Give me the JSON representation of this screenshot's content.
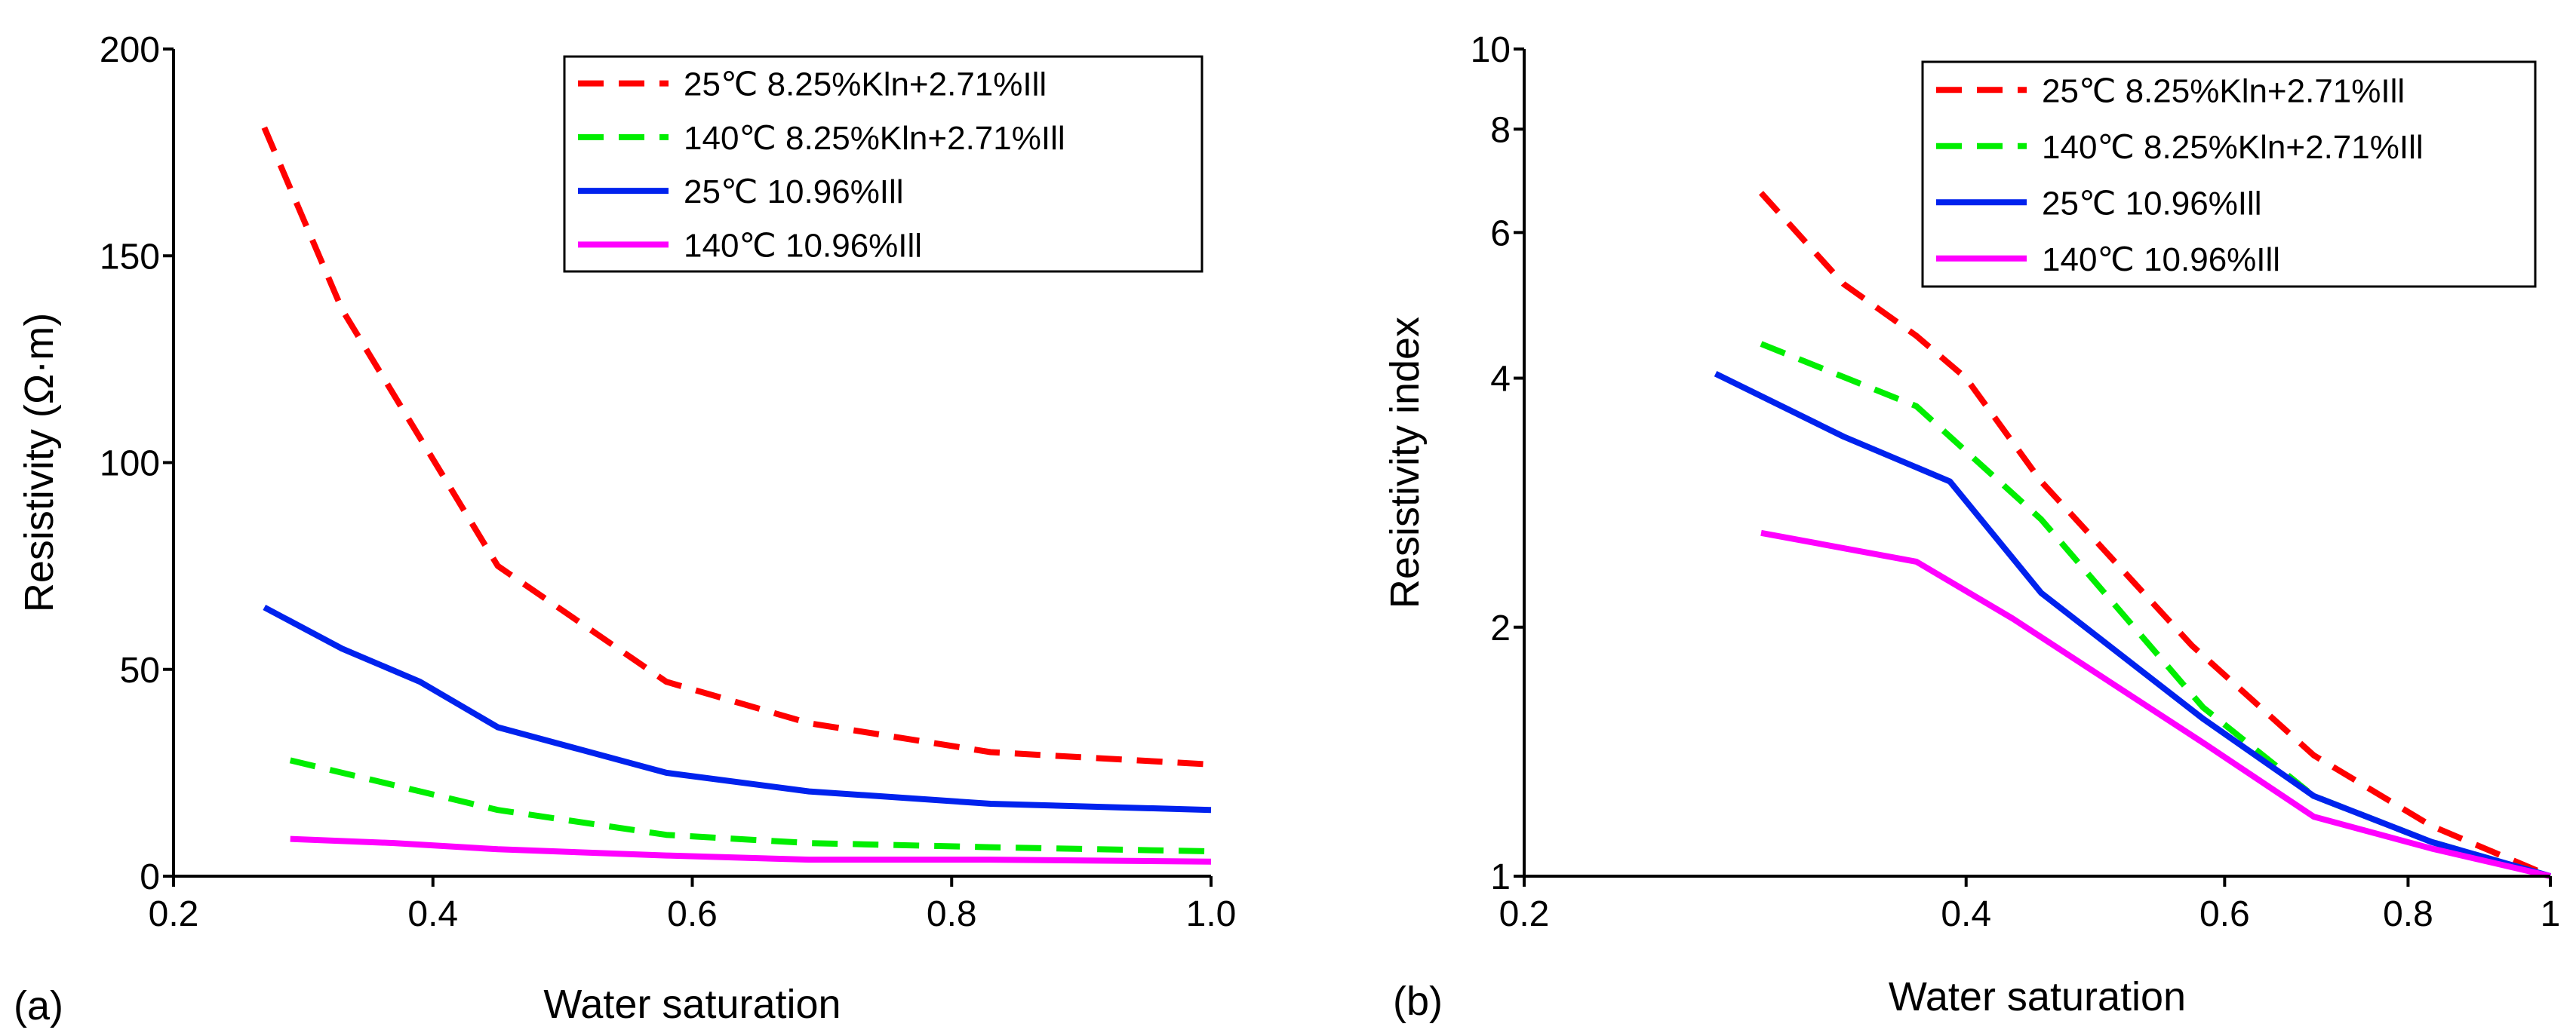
{
  "chart_data": [
    {
      "panel_label": "(a)",
      "type": "line",
      "xlabel": "Water saturation",
      "ylabel": "Resistivity (Ω·m)",
      "xlim": [
        0.2,
        1.0
      ],
      "ylim": [
        0,
        200
      ],
      "xscale": "linear",
      "yscale": "linear",
      "xticks": [
        "0.2",
        "0.4",
        "0.6",
        "0.8",
        "1.0"
      ],
      "xtick_values": [
        0.2,
        0.4,
        0.6,
        0.8,
        1.0
      ],
      "yticks": [
        "0",
        "50",
        "100",
        "150",
        "200"
      ],
      "ytick_values": [
        0,
        50,
        100,
        150,
        200
      ],
      "grid": false,
      "legend_position": "top-right",
      "series": [
        {
          "name": "25℃ 8.25%Kln+2.71%Ill",
          "color": "#ff0000",
          "dash": "dashed",
          "x": [
            0.27,
            0.33,
            0.39,
            0.45,
            0.58,
            0.69,
            0.83,
            1.0
          ],
          "y": [
            181,
            137,
            106,
            75,
            47,
            37,
            30,
            27
          ]
        },
        {
          "name": "140℃ 8.25%Kln+2.71%Ill",
          "color": "#00ee00",
          "dash": "dashed",
          "x": [
            0.29,
            0.37,
            0.45,
            0.58,
            0.69,
            0.83,
            1.0
          ],
          "y": [
            28,
            22,
            16,
            10,
            8,
            7,
            6
          ]
        },
        {
          "name": "25℃ 10.96%Ill",
          "color": "#0022ee",
          "dash": "solid",
          "x": [
            0.27,
            0.33,
            0.39,
            0.45,
            0.58,
            0.69,
            0.83,
            1.0
          ],
          "y": [
            65,
            55,
            47,
            36,
            25,
            20.5,
            17.5,
            16
          ]
        },
        {
          "name": "140℃ 10.96%Ill",
          "color": "#ff00ff",
          "dash": "solid",
          "x": [
            0.29,
            0.37,
            0.45,
            0.58,
            0.69,
            0.83,
            1.0
          ],
          "y": [
            9,
            8,
            6.5,
            5,
            4,
            4,
            3.5
          ]
        }
      ]
    },
    {
      "panel_label": "(b)",
      "type": "line",
      "xlabel": "Water saturation",
      "ylabel": "Resistivity index",
      "xlim": [
        0.2,
        1.0
      ],
      "ylim": [
        1,
        10
      ],
      "xscale": "log",
      "yscale": "log",
      "xticks": [
        "0.2",
        "0.4",
        "0.6",
        "0.8",
        "1"
      ],
      "xtick_values": [
        0.2,
        0.4,
        0.6,
        0.8,
        1.0
      ],
      "yticks": [
        "1",
        "2",
        "4",
        "6",
        "8",
        "10"
      ],
      "ytick_values": [
        1,
        2,
        4,
        6,
        8,
        10
      ],
      "grid": false,
      "legend_position": "top-right",
      "series": [
        {
          "name": "25℃ 8.25%Kln+2.71%Ill",
          "color": "#ff0000",
          "dash": "dashed",
          "x": [
            0.29,
            0.33,
            0.37,
            0.4,
            0.45,
            0.57,
            0.69,
            0.83,
            1.0
          ],
          "y": [
            6.7,
            5.2,
            4.5,
            4.0,
            3.0,
            1.9,
            1.4,
            1.15,
            1.0
          ]
        },
        {
          "name": "140℃ 8.25%Kln+2.71%Ill",
          "color": "#00ee00",
          "dash": "dashed",
          "x": [
            0.29,
            0.37,
            0.45,
            0.58,
            0.69,
            0.83,
            1.0
          ],
          "y": [
            4.4,
            3.7,
            2.7,
            1.6,
            1.25,
            1.1,
            1.0
          ]
        },
        {
          "name": "25℃ 10.96%Ill",
          "color": "#0022ee",
          "dash": "solid",
          "x": [
            0.27,
            0.33,
            0.39,
            0.45,
            0.58,
            0.69,
            0.83,
            1.0
          ],
          "y": [
            4.05,
            3.4,
            3.0,
            2.2,
            1.55,
            1.25,
            1.1,
            1.0
          ]
        },
        {
          "name": "140℃ 10.96%Ill",
          "color": "#ff00ff",
          "dash": "solid",
          "x": [
            0.29,
            0.37,
            0.43,
            0.58,
            0.69,
            0.83,
            1.0
          ],
          "y": [
            2.6,
            2.4,
            2.05,
            1.45,
            1.18,
            1.08,
            1.0
          ]
        }
      ]
    }
  ]
}
